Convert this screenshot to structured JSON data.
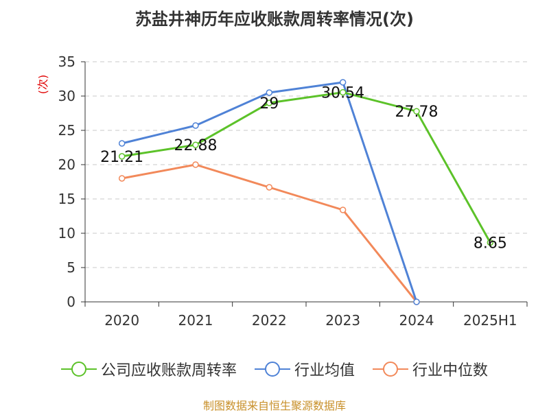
{
  "chart_data": {
    "type": "line",
    "title": "苏盐井神历年应收账款周转率情况(次)",
    "unit_label": "(次)",
    "categories": [
      "2020",
      "2021",
      "2022",
      "2023",
      "2024",
      "2025H1"
    ],
    "ylim": [
      0,
      35
    ],
    "yticks": [
      0,
      5,
      10,
      15,
      20,
      25,
      30,
      35
    ],
    "grid": true,
    "legend_position": "bottom",
    "series": [
      {
        "name": "公司应收账款周转率",
        "color": "#5cc229",
        "values": [
          21.21,
          22.88,
          29,
          30.54,
          27.78,
          8.65
        ],
        "labels": [
          "21.21",
          "22.88",
          "29",
          "30.54",
          "27.78",
          "8.65"
        ]
      },
      {
        "name": "行业均值",
        "color": "#4f82d6",
        "values": [
          23.1,
          25.7,
          30.5,
          32.0,
          0,
          null
        ]
      },
      {
        "name": "行业中位数",
        "color": "#f2895a",
        "values": [
          18.0,
          20.0,
          16.7,
          13.4,
          0,
          null
        ]
      }
    ]
  },
  "source_note": "制图数据来自恒生聚源数据库"
}
